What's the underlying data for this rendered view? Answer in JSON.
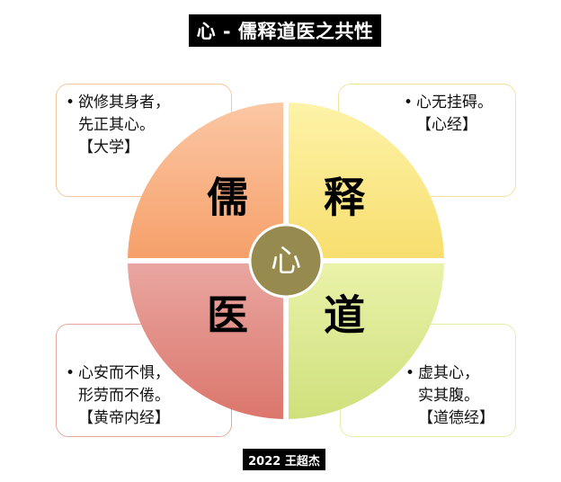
{
  "title": "心 - 儒释道医之共性",
  "center_label": "心",
  "quadrants": {
    "top_left": {
      "label": "儒",
      "color_top": "#fbc7a4",
      "color_bottom": "#f6a06a"
    },
    "top_right": {
      "label": "释",
      "color_top": "#fdf3a8",
      "color_bottom": "#f7de6e"
    },
    "bottom_left": {
      "label": "医",
      "color_top": "#e9a6a0",
      "color_bottom": "#db766c"
    },
    "bottom_right": {
      "label": "道",
      "color_top": "#eaf2a9",
      "color_bottom": "#cfe07c"
    }
  },
  "center_color": "#968a4e",
  "boxes": {
    "top_left": {
      "lines": [
        "欲修其身者，",
        "先正其心。"
      ],
      "ref": "【大学】"
    },
    "top_right": {
      "lines": [
        "心无挂碍。"
      ],
      "ref": "【心经】"
    },
    "bottom_left": {
      "lines": [
        "心安而不惧，",
        "形劳而不倦。"
      ],
      "ref": "【黄帝内经】"
    },
    "bottom_right": {
      "lines": [
        "虚其心，",
        "实其腹。"
      ],
      "ref": "【道德经】"
    }
  },
  "footer": "2022 王超杰"
}
